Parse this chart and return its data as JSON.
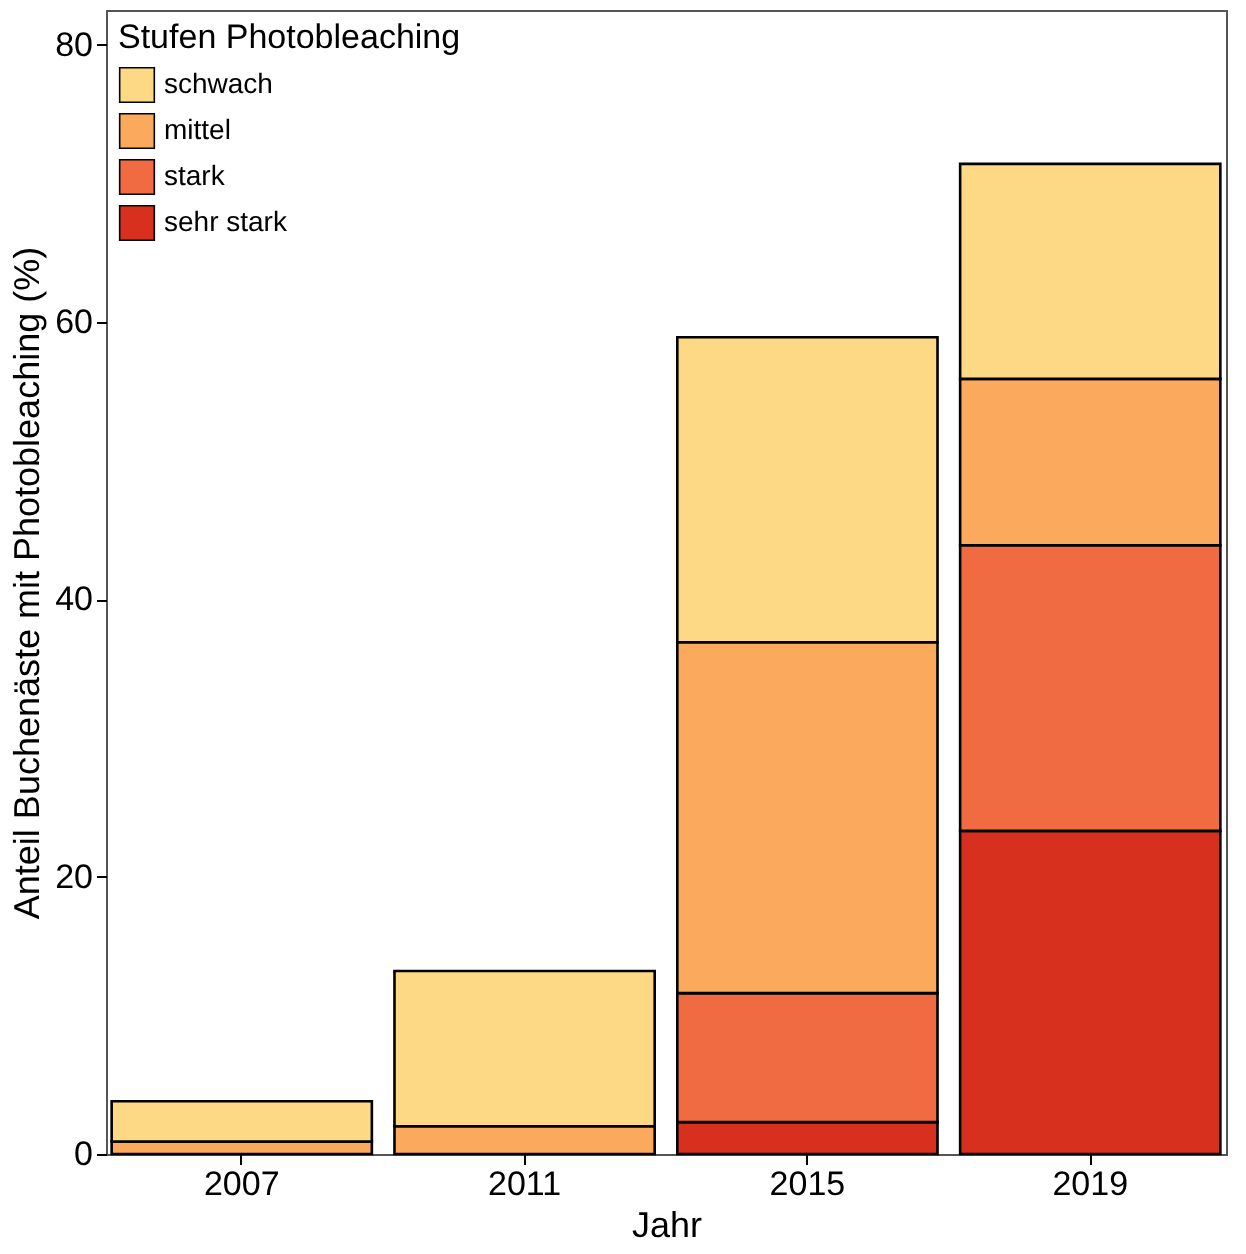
{
  "chart_data": {
    "type": "bar",
    "stacked": true,
    "xlabel": "Jahr",
    "ylabel": "Anteil Buchenäste mit Photobleaching (%)",
    "legend_title": "Stufen Photobleaching",
    "legend": "top left",
    "grid": false,
    "categories": [
      "2007",
      "2011",
      "2015",
      "2019"
    ],
    "ylim": [
      0,
      82.5
    ],
    "yticks": [
      0,
      20,
      40,
      60,
      80
    ],
    "series": [
      {
        "name": "sehr stark",
        "color": "#d7301f",
        "values": [
          null,
          null,
          2.3,
          23.3
        ]
      },
      {
        "name": "stark",
        "color": "#f06b42",
        "values": [
          null,
          null,
          9.3,
          20.6
        ]
      },
      {
        "name": "mittel",
        "color": "#fbaa5d",
        "values": [
          0.9,
          2.0,
          25.3,
          12.0
        ]
      },
      {
        "name": "schwach",
        "color": "#fdd985",
        "values": [
          2.9,
          11.2,
          22.0,
          15.5
        ]
      }
    ]
  }
}
